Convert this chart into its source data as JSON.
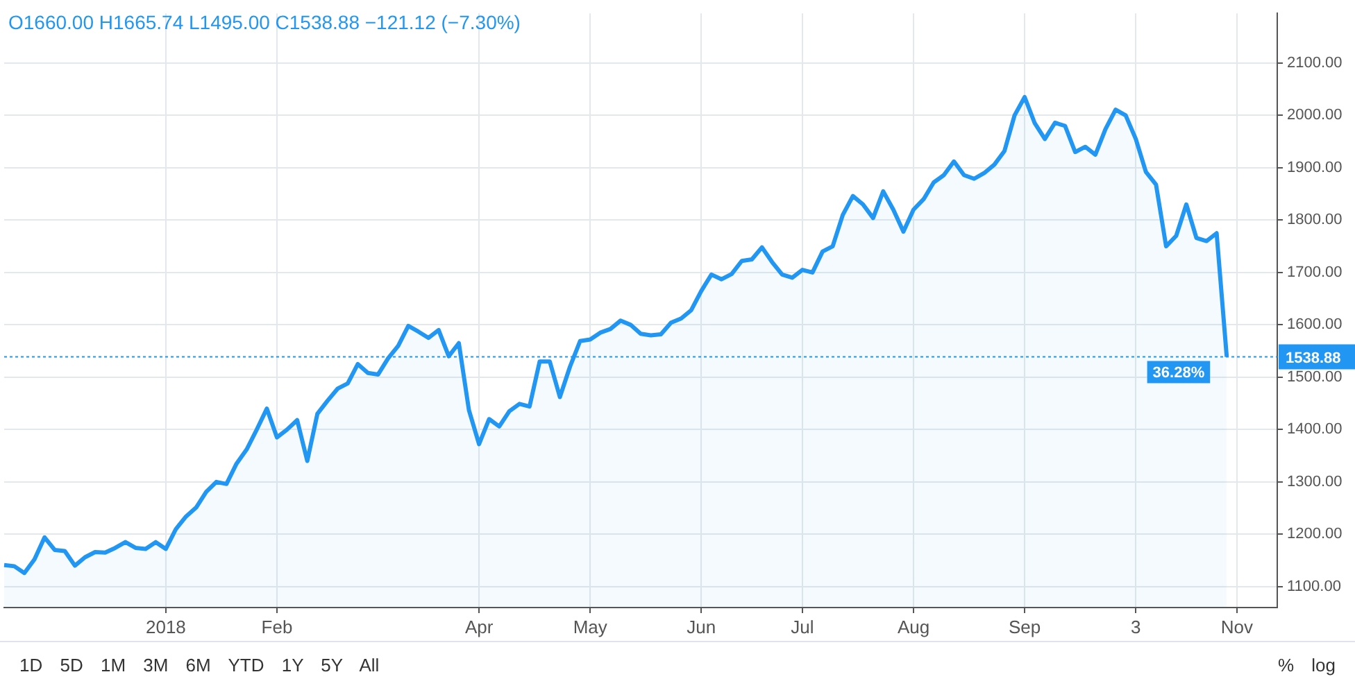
{
  "chart_data": {
    "type": "area",
    "categories": [
      null,
      null,
      null,
      null,
      null,
      null,
      null,
      null,
      null,
      null,
      null,
      null,
      null,
      null,
      null,
      null,
      "2018",
      null,
      null,
      null,
      null,
      null,
      null,
      null,
      null,
      null,
      null,
      "Feb",
      null,
      null,
      null,
      null,
      null,
      null,
      null,
      null,
      null,
      null,
      null,
      null,
      null,
      null,
      null,
      null,
      null,
      null,
      null,
      "Apr",
      null,
      null,
      null,
      null,
      null,
      null,
      null,
      null,
      null,
      null,
      "May",
      null,
      null,
      null,
      null,
      null,
      null,
      null,
      null,
      null,
      null,
      "Jun",
      null,
      null,
      null,
      null,
      null,
      null,
      null,
      null,
      null,
      "Jul",
      null,
      null,
      null,
      null,
      null,
      null,
      null,
      null,
      null,
      null,
      "Aug",
      null,
      null,
      null,
      null,
      null,
      null,
      null,
      null,
      null,
      null,
      "Sep",
      null,
      null,
      null,
      null,
      null,
      null,
      null,
      null,
      null,
      null,
      "3",
      null,
      null,
      null,
      null,
      null,
      null,
      null,
      null,
      null,
      "Nov",
      null,
      null,
      null,
      null
    ],
    "series": [
      {
        "color": "#2196f3",
        "values": [
          1141,
          1139,
          1126,
          1152,
          1194,
          1170,
          1168,
          1140,
          1156,
          1166,
          1165,
          1174,
          1185,
          1174,
          1172,
          1185,
          1172,
          1210,
          1234,
          1251,
          1281,
          1300,
          1296,
          1335,
          1362,
          1400,
          1440,
          1385,
          1400,
          1418,
          1340,
          1430,
          1455,
          1478,
          1488,
          1525,
          1508,
          1505,
          1536,
          1560,
          1598,
          1587,
          1575,
          1590,
          1540,
          1565,
          1437,
          1372,
          1420,
          1406,
          1435,
          1449,
          1444,
          1530,
          1530,
          1462,
          1520,
          1569,
          1572,
          1585,
          1592,
          1608,
          1600,
          1583,
          1580,
          1582,
          1604,
          1612,
          1628,
          1665,
          1696,
          1687,
          1697,
          1722,
          1725,
          1748,
          1720,
          1696,
          1690,
          1705,
          1700,
          1740,
          1750,
          1810,
          1846,
          1830,
          1804,
          1855,
          1820,
          1778,
          1820,
          1840,
          1872,
          1886,
          1912,
          1886,
          1879,
          1890,
          1906,
          1932,
          2000,
          2035,
          1985,
          1955,
          1986,
          1980,
          1930,
          1940,
          1925,
          1974,
          2011,
          2000,
          1955,
          1892,
          1868,
          1750,
          1770,
          1830,
          1766,
          1760,
          1775,
          1538.88,
          null,
          null,
          null,
          null,
          null
        ]
      }
    ],
    "ylim": [
      1060,
      2195
    ],
    "yticks": [
      {
        "value": 1100,
        "label": "1100.00"
      },
      {
        "value": 1200,
        "label": "1200.00"
      },
      {
        "value": 1300,
        "label": "1300.00"
      },
      {
        "value": 1400,
        "label": "1400.00"
      },
      {
        "value": 1500,
        "label": "1500.00"
      },
      {
        "value": 1600,
        "label": "1600.00"
      },
      {
        "value": 1700,
        "label": "1700.00"
      },
      {
        "value": 1800,
        "label": "1800.00"
      },
      {
        "value": 1900,
        "label": "1900.00"
      },
      {
        "value": 2000,
        "label": "2000.00"
      },
      {
        "value": 2100,
        "label": "2100.00"
      }
    ],
    "grid": true,
    "legend": false,
    "marker": "none",
    "line_style": "solid",
    "ref_lines": [
      {
        "axis": "y",
        "value": 1538.88,
        "label": "1538.88",
        "color": "#2196f3",
        "line_style": "dotted"
      }
    ],
    "annotations": [
      "O1660.00 H1665.74 L1495.00 C1538.88 −121.12 (−7.30%)",
      {
        "text": "36.28%",
        "y": 1538.88
      },
      "1D 5D 1M 3M 6M YTD 1Y 5Y All",
      "% log"
    ]
  }
}
